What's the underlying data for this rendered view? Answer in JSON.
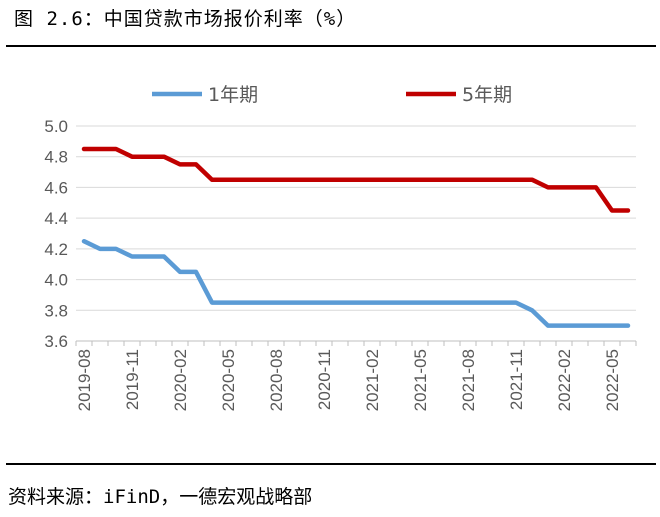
{
  "figure": {
    "title": "图 2.6：中国贷款市场报价利率（%）",
    "source": "资料来源：iFinD，一德宏观战略部"
  },
  "chart_data": {
    "type": "line",
    "x": [
      "2019-08",
      "2019-09",
      "2019-10",
      "2019-11",
      "2019-12",
      "2020-01",
      "2020-02",
      "2020-03",
      "2020-04",
      "2020-05",
      "2020-06",
      "2020-07",
      "2020-08",
      "2020-09",
      "2020-10",
      "2020-11",
      "2020-12",
      "2021-01",
      "2021-02",
      "2021-03",
      "2021-04",
      "2021-05",
      "2021-06",
      "2021-07",
      "2021-08",
      "2021-09",
      "2021-10",
      "2021-11",
      "2021-12",
      "2022-01",
      "2022-02",
      "2022-03",
      "2022-04",
      "2022-05",
      "2022-06"
    ],
    "x_tick_labels": [
      "2019-08",
      "2019-11",
      "2020-02",
      "2020-05",
      "2020-08",
      "2020-11",
      "2021-02",
      "2021-05",
      "2021-08",
      "2021-11",
      "2022-02",
      "2022-05"
    ],
    "series": [
      {
        "name": "1年期",
        "color": "#5B9BD5",
        "values": [
          4.25,
          4.2,
          4.2,
          4.15,
          4.15,
          4.15,
          4.05,
          4.05,
          3.85,
          3.85,
          3.85,
          3.85,
          3.85,
          3.85,
          3.85,
          3.85,
          3.85,
          3.85,
          3.85,
          3.85,
          3.85,
          3.85,
          3.85,
          3.85,
          3.85,
          3.85,
          3.85,
          3.85,
          3.8,
          3.7,
          3.7,
          3.7,
          3.7,
          3.7,
          3.7
        ]
      },
      {
        "name": "5年期",
        "color": "#C00000",
        "values": [
          4.85,
          4.85,
          4.85,
          4.8,
          4.8,
          4.8,
          4.75,
          4.75,
          4.65,
          4.65,
          4.65,
          4.65,
          4.65,
          4.65,
          4.65,
          4.65,
          4.65,
          4.65,
          4.65,
          4.65,
          4.65,
          4.65,
          4.65,
          4.65,
          4.65,
          4.65,
          4.65,
          4.65,
          4.65,
          4.6,
          4.6,
          4.6,
          4.6,
          4.45,
          4.45
        ]
      }
    ],
    "y_ticks": [
      "3.6",
      "3.8",
      "4.0",
      "4.2",
      "4.4",
      "4.6",
      "4.8",
      "5.0"
    ],
    "ylim": [
      3.6,
      5.0
    ],
    "grid": true,
    "legend_position": "top"
  }
}
